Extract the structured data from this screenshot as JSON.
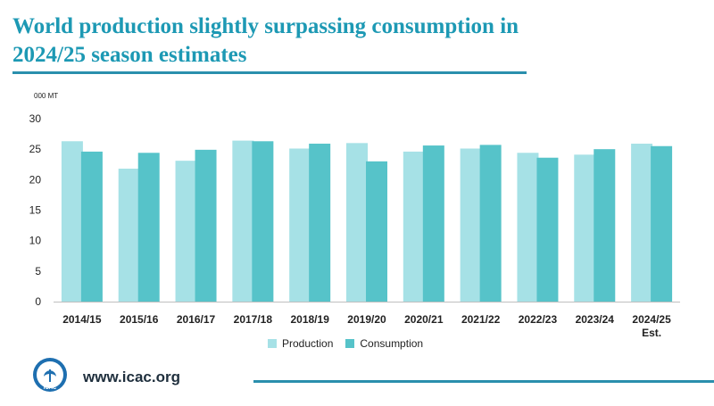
{
  "header": {
    "title_line1": "World production slightly surpassing consumption in",
    "title_line2": "2024/25 season estimates"
  },
  "colors": {
    "production": "#a6e1e6",
    "consumption": "#56c3c9",
    "accent": "#2a8fad",
    "title": "#1d99b4"
  },
  "chart_data": {
    "type": "bar",
    "unit_label": "000 MT",
    "categories": [
      "2014/15",
      "2015/16",
      "2016/17",
      "2017/18",
      "2018/19",
      "2019/20",
      "2020/21",
      "2021/22",
      "2022/23",
      "2023/24",
      "2024/25\nEst."
    ],
    "series": [
      {
        "name": "Production",
        "values": [
          26.3,
          21.8,
          23.1,
          26.4,
          25.1,
          26.0,
          24.6,
          25.1,
          24.4,
          24.1,
          25.9
        ]
      },
      {
        "name": "Consumption",
        "values": [
          24.6,
          24.4,
          24.9,
          26.3,
          25.9,
          23.0,
          25.6,
          25.7,
          23.6,
          25.0,
          25.5
        ]
      }
    ],
    "ylim": [
      0,
      30
    ],
    "yticks": [
      0,
      5,
      10,
      15,
      20,
      25,
      30
    ],
    "xlabel": "",
    "ylabel": "",
    "legend_position": "bottom"
  },
  "footer": {
    "url": "www.icac.org",
    "logo_text": "ICAC"
  }
}
